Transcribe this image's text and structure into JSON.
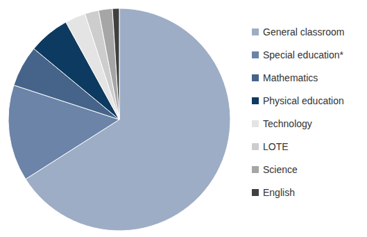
{
  "chart_data": {
    "type": "pie",
    "categories": [
      "General classroom",
      "Special education*",
      "Mathematics",
      "Physical education",
      "Technology",
      "LOTE",
      "Science",
      "English"
    ],
    "values": [
      66,
      14,
      6,
      6,
      3,
      2,
      2,
      1
    ],
    "colors": [
      "#9dadc6",
      "#6b84a8",
      "#46648a",
      "#0d3a60",
      "#e4e4e4",
      "#cdcdcd",
      "#a6a6a6",
      "#404040"
    ],
    "legend": "right"
  }
}
